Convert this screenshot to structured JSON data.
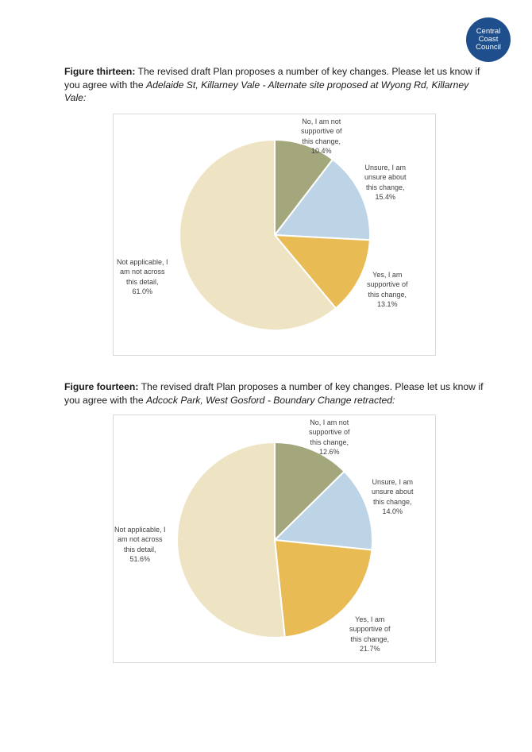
{
  "logo": {
    "lines": [
      "Central",
      "Coast",
      "Council"
    ]
  },
  "figures": [
    {
      "label": "Figure thirteen:",
      "text_before": " The revised draft Plan proposes a number of key changes. Please let us know if you agree with the ",
      "italic": "Adelaide St, Killarney Vale - Alternate site proposed at Wyong Rd, Killarney Vale:",
      "labels": {
        "no": [
          "No, I am not",
          "supportive of",
          "this change,",
          "10.4%"
        ],
        "unsure": [
          "Unsure, I am",
          "unsure about",
          "this change,",
          "15.4%"
        ],
        "yes": [
          "Yes, I am",
          "supportive of",
          "this change,",
          "13.1%"
        ],
        "na": [
          "Not applicable, I",
          "am not across",
          "this detail,",
          "61.0%"
        ]
      }
    },
    {
      "label": "Figure fourteen:",
      "text_before": " The revised draft Plan proposes a number of key changes. Please let us know if you agree with the ",
      "italic": "Adcock Park, West Gosford - Boundary Change retracted:",
      "labels": {
        "no": [
          "No, I am not",
          "supportive of",
          "this change,",
          "12.6%"
        ],
        "unsure": [
          "Unsure, I am",
          "unsure about",
          "this change,",
          "14.0%"
        ],
        "yes": [
          "Yes, I am",
          "supportive of",
          "this change,",
          "21.7%"
        ],
        "na": [
          "Not applicable, I",
          "am not across",
          "this detail,",
          "51.6%"
        ]
      }
    }
  ],
  "chart_data": [
    {
      "type": "pie",
      "categories": [
        "No, I am not supportive of this change",
        "Unsure, I am unsure about this change",
        "Yes, I am supportive of this change",
        "Not applicable, I am not across this detail"
      ],
      "values": [
        10.4,
        15.4,
        13.1,
        61.0
      ],
      "colors": [
        "#a3a77b",
        "#bdd4e7",
        "#e9bb54",
        "#eee4c4"
      ]
    },
    {
      "type": "pie",
      "categories": [
        "No, I am not supportive of this change",
        "Unsure, I am unsure about this change",
        "Yes, I am supportive of this change",
        "Not applicable, I am not across this detail"
      ],
      "values": [
        12.6,
        14.0,
        21.7,
        51.6
      ],
      "colors": [
        "#a3a77b",
        "#bdd4e7",
        "#e9bb54",
        "#eee4c4"
      ]
    }
  ]
}
